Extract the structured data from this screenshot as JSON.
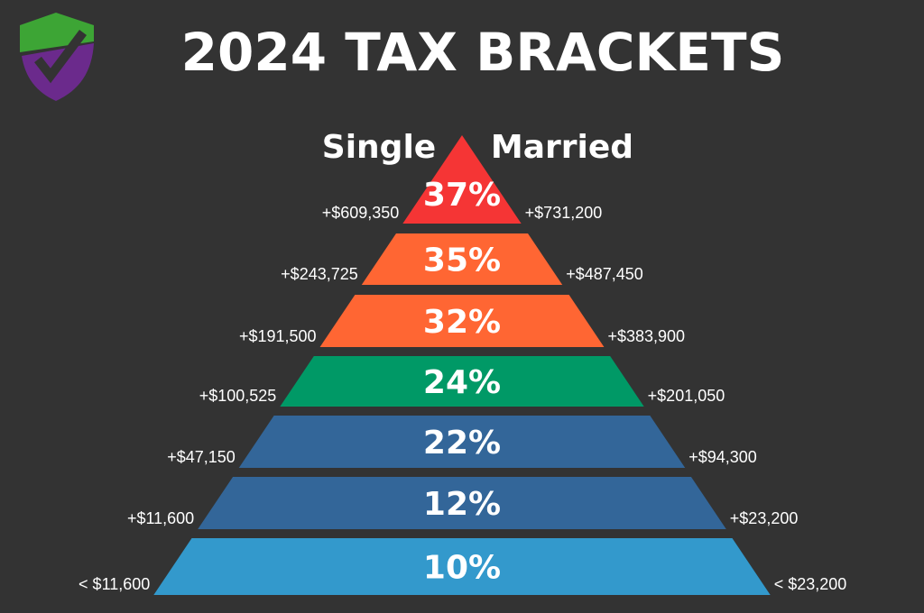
{
  "header": {
    "title": "2024 TAX BRACKETS"
  },
  "columns": {
    "single": "Single",
    "married": "Married"
  },
  "brackets": [
    {
      "rate": "37%",
      "single": "+$609,350",
      "married": "+$731,200",
      "color": "#f53535"
    },
    {
      "rate": "35%",
      "single": "+$243,725",
      "married": "+$487,450",
      "color": "#ff6633"
    },
    {
      "rate": "32%",
      "single": "+$191,500",
      "married": "+$383,900",
      "color": "#ff6633"
    },
    {
      "rate": "24%",
      "single": "+$100,525",
      "married": "+$201,050",
      "color": "#009966"
    },
    {
      "rate": "22%",
      "single": "+$47,150",
      "married": "+$94,300",
      "color": "#336699"
    },
    {
      "rate": "12%",
      "single": "+$11,600",
      "married": "+$23,200",
      "color": "#336699"
    },
    {
      "rate": "10%",
      "single": "< $11,600",
      "married": "< $23,200",
      "color": "#3399cc"
    }
  ]
}
